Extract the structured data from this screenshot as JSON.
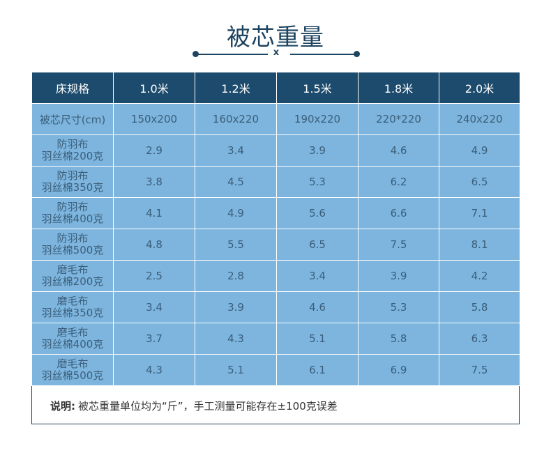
{
  "title": "被芯重量",
  "divider_mark": "x",
  "table": {
    "header": [
      "床规格",
      "1.0米",
      "1.2米",
      "1.5米",
      "1.8米",
      "2.0米"
    ],
    "size_row": [
      "被芯尺寸(cm)",
      "150x200",
      "160x220",
      "190x220",
      "220*220",
      "240x220"
    ],
    "rows": [
      {
        "line1": "防羽布",
        "line2": "羽丝棉200克",
        "values": [
          "2.9",
          "3.4",
          "3.9",
          "4.6",
          "4.9"
        ]
      },
      {
        "line1": "防羽布",
        "line2": "羽丝棉350克",
        "values": [
          "3.8",
          "4.5",
          "5.3",
          "6.2",
          "6.5"
        ]
      },
      {
        "line1": "防羽布",
        "line2": "羽丝棉400克",
        "values": [
          "4.1",
          "4.9",
          "5.6",
          "6.6",
          "7.1"
        ]
      },
      {
        "line1": "防羽布",
        "line2": "羽丝棉500克",
        "values": [
          "4.8",
          "5.5",
          "6.5",
          "7.5",
          "8.1"
        ]
      },
      {
        "line1": "磨毛布",
        "line2": "羽丝棉200克",
        "values": [
          "2.5",
          "2.8",
          "3.4",
          "3.9",
          "4.2"
        ]
      },
      {
        "line1": "磨毛布",
        "line2": "羽丝棉350克",
        "values": [
          "3.4",
          "3.9",
          "4.6",
          "5.3",
          "5.8"
        ]
      },
      {
        "line1": "磨毛布",
        "line2": "羽丝棉400克",
        "values": [
          "3.7",
          "4.3",
          "5.1",
          "5.8",
          "6.3"
        ]
      },
      {
        "line1": "磨毛布",
        "line2": "羽丝棉500克",
        "values": [
          "4.3",
          "5.1",
          "6.1",
          "6.9",
          "7.5"
        ]
      }
    ]
  },
  "note": {
    "label": "说明:",
    "text": "被芯重量单位均为“斤”，手工测量可能存在±100克误差"
  },
  "colors": {
    "header_bg": "#1d4b6d",
    "cell_bg": "#7db5de",
    "title": "#1d4460"
  }
}
